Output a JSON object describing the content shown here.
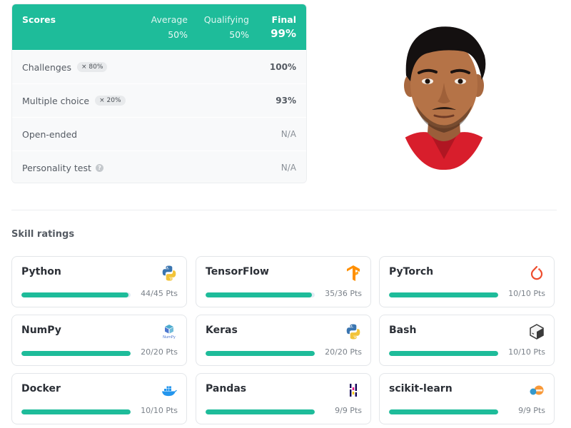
{
  "scores": {
    "title": "Scores",
    "columns": [
      {
        "label": "Average",
        "value": "50%"
      },
      {
        "label": "Qualifying",
        "value": "50%"
      },
      {
        "label": "Final",
        "value": "99%"
      }
    ],
    "rows": [
      {
        "label": "Challenges",
        "badge": "× 80%",
        "value": "100%"
      },
      {
        "label": "Multiple choice",
        "badge": "× 20%",
        "value": "93%"
      },
      {
        "label": "Open-ended",
        "value": "N/A"
      },
      {
        "label": "Personality test",
        "help": "?",
        "value": "N/A"
      }
    ],
    "header_color": "#1ebc9a"
  },
  "skills_title": "Skill ratings",
  "skills": [
    {
      "name": "Python",
      "points": "44/45 Pts",
      "fill": 0.978,
      "icon": "python-icon"
    },
    {
      "name": "TensorFlow",
      "points": "35/36 Pts",
      "fill": 0.972,
      "icon": "tensorflow-icon"
    },
    {
      "name": "PyTorch",
      "points": "10/10 Pts",
      "fill": 1.0,
      "icon": "pytorch-icon"
    },
    {
      "name": "NumPy",
      "points": "20/20 Pts",
      "fill": 1.0,
      "icon": "numpy-icon",
      "icon_text": "NumPy"
    },
    {
      "name": "Keras",
      "points": "20/20 Pts",
      "fill": 1.0,
      "icon": "keras-icon"
    },
    {
      "name": "Bash",
      "points": "10/10 Pts",
      "fill": 1.0,
      "icon": "bash-icon"
    },
    {
      "name": "Docker",
      "points": "10/10 Pts",
      "fill": 1.0,
      "icon": "docker-icon"
    },
    {
      "name": "Pandas",
      "points": "9/9 Pts",
      "fill": 1.0,
      "icon": "pandas-icon"
    },
    {
      "name": "scikit-learn",
      "points": "9/9 Pts",
      "fill": 1.0,
      "icon": "scikit-learn-icon"
    }
  ]
}
